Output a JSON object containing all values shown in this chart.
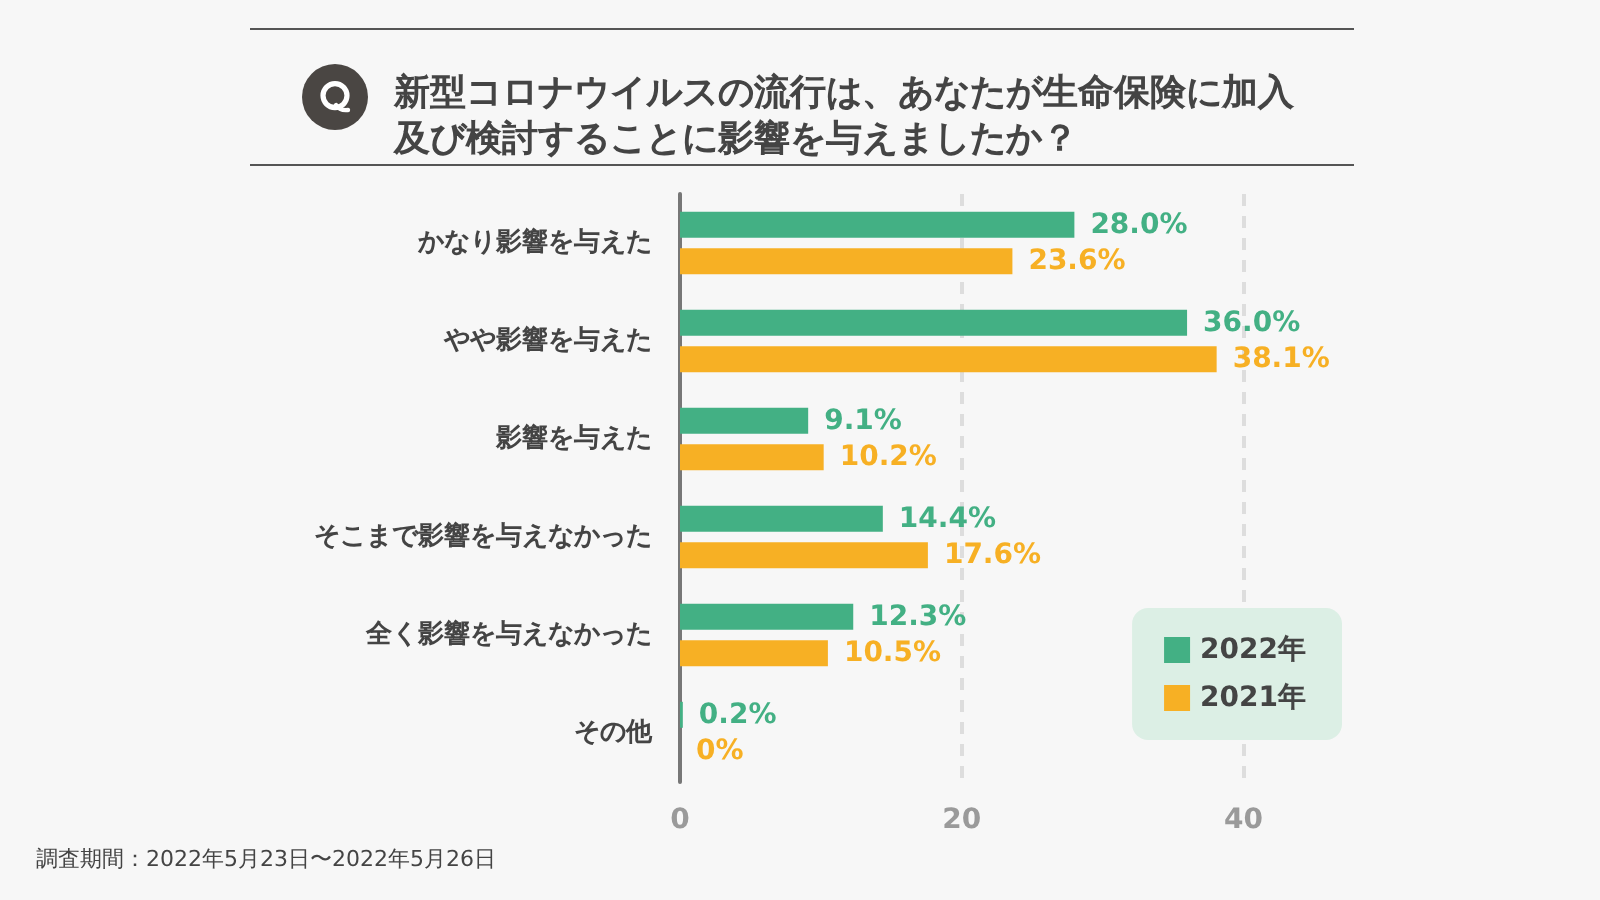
{
  "chart_data": {
    "type": "bar",
    "orientation": "horizontal",
    "title": "新型コロナウイルスの流行は、あなたが生命保険に加入及び検討することに影響を与えましたか？",
    "categories": [
      "かなり影響を与えた",
      "やや影響を与えた",
      "影響を与えた",
      "そこまで影響を与えなかった",
      "全く影響を与えなかった",
      "その他"
    ],
    "series": [
      {
        "name": "2022年",
        "color": "#43b084",
        "values": [
          28.0,
          36.0,
          9.1,
          14.4,
          12.3,
          0.2
        ],
        "value_labels": [
          "28.0%",
          "36.0%",
          "9.1%",
          "14.4%",
          "12.3%",
          "0.2%"
        ]
      },
      {
        "name": "2021年",
        "color": "#f7b024",
        "values": [
          23.6,
          38.1,
          10.2,
          17.6,
          10.5,
          0
        ],
        "value_labels": [
          "23.6%",
          "38.1%",
          "10.2%",
          "17.6%",
          "10.5%",
          "0%"
        ]
      }
    ],
    "xlim": [
      0,
      47
    ],
    "xticks": [
      0,
      20,
      40
    ],
    "grid": "x",
    "legend": "bottom right",
    "annotations": [
      "調査期間：2022年5月23日〜2022年5月26日"
    ]
  }
}
